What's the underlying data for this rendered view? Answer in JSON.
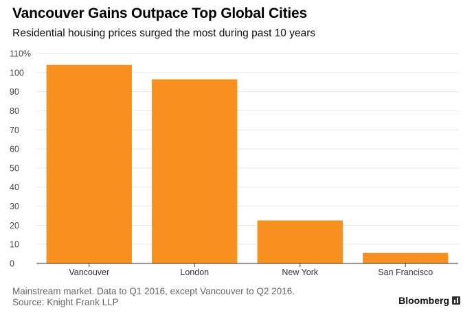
{
  "header": {
    "title": "Vancouver Gains Outpace Top Global Cities",
    "subtitle": "Residential housing prices surged the most during past 10 years"
  },
  "footer": {
    "note": "Mainstream market. Data to Q1 2016, except Vancouver to Q2 2016.",
    "source": "Source: Knight Frank LLP",
    "brand": "Bloomberg"
  },
  "colors": {
    "bar": "#f7901e",
    "grid": "#e6e6e6",
    "axis": "#333333"
  },
  "chart_data": {
    "type": "bar",
    "title": "Vancouver Gains Outpace Top Global Cities",
    "subtitle": "Residential housing prices surged the most during past 10 years",
    "categories": [
      "Vancouver",
      "London",
      "New York",
      "San Francisco"
    ],
    "values": [
      104,
      96.5,
      22.5,
      5.5
    ],
    "ylim": [
      0,
      110
    ],
    "yticks": [
      0,
      10,
      20,
      30,
      40,
      50,
      60,
      70,
      80,
      90,
      100,
      110
    ],
    "ytick_labels": [
      "0",
      "10",
      "20",
      "30",
      "40",
      "50",
      "60",
      "70",
      "80",
      "90",
      "100",
      "110%"
    ],
    "grid": true,
    "legend": false
  }
}
